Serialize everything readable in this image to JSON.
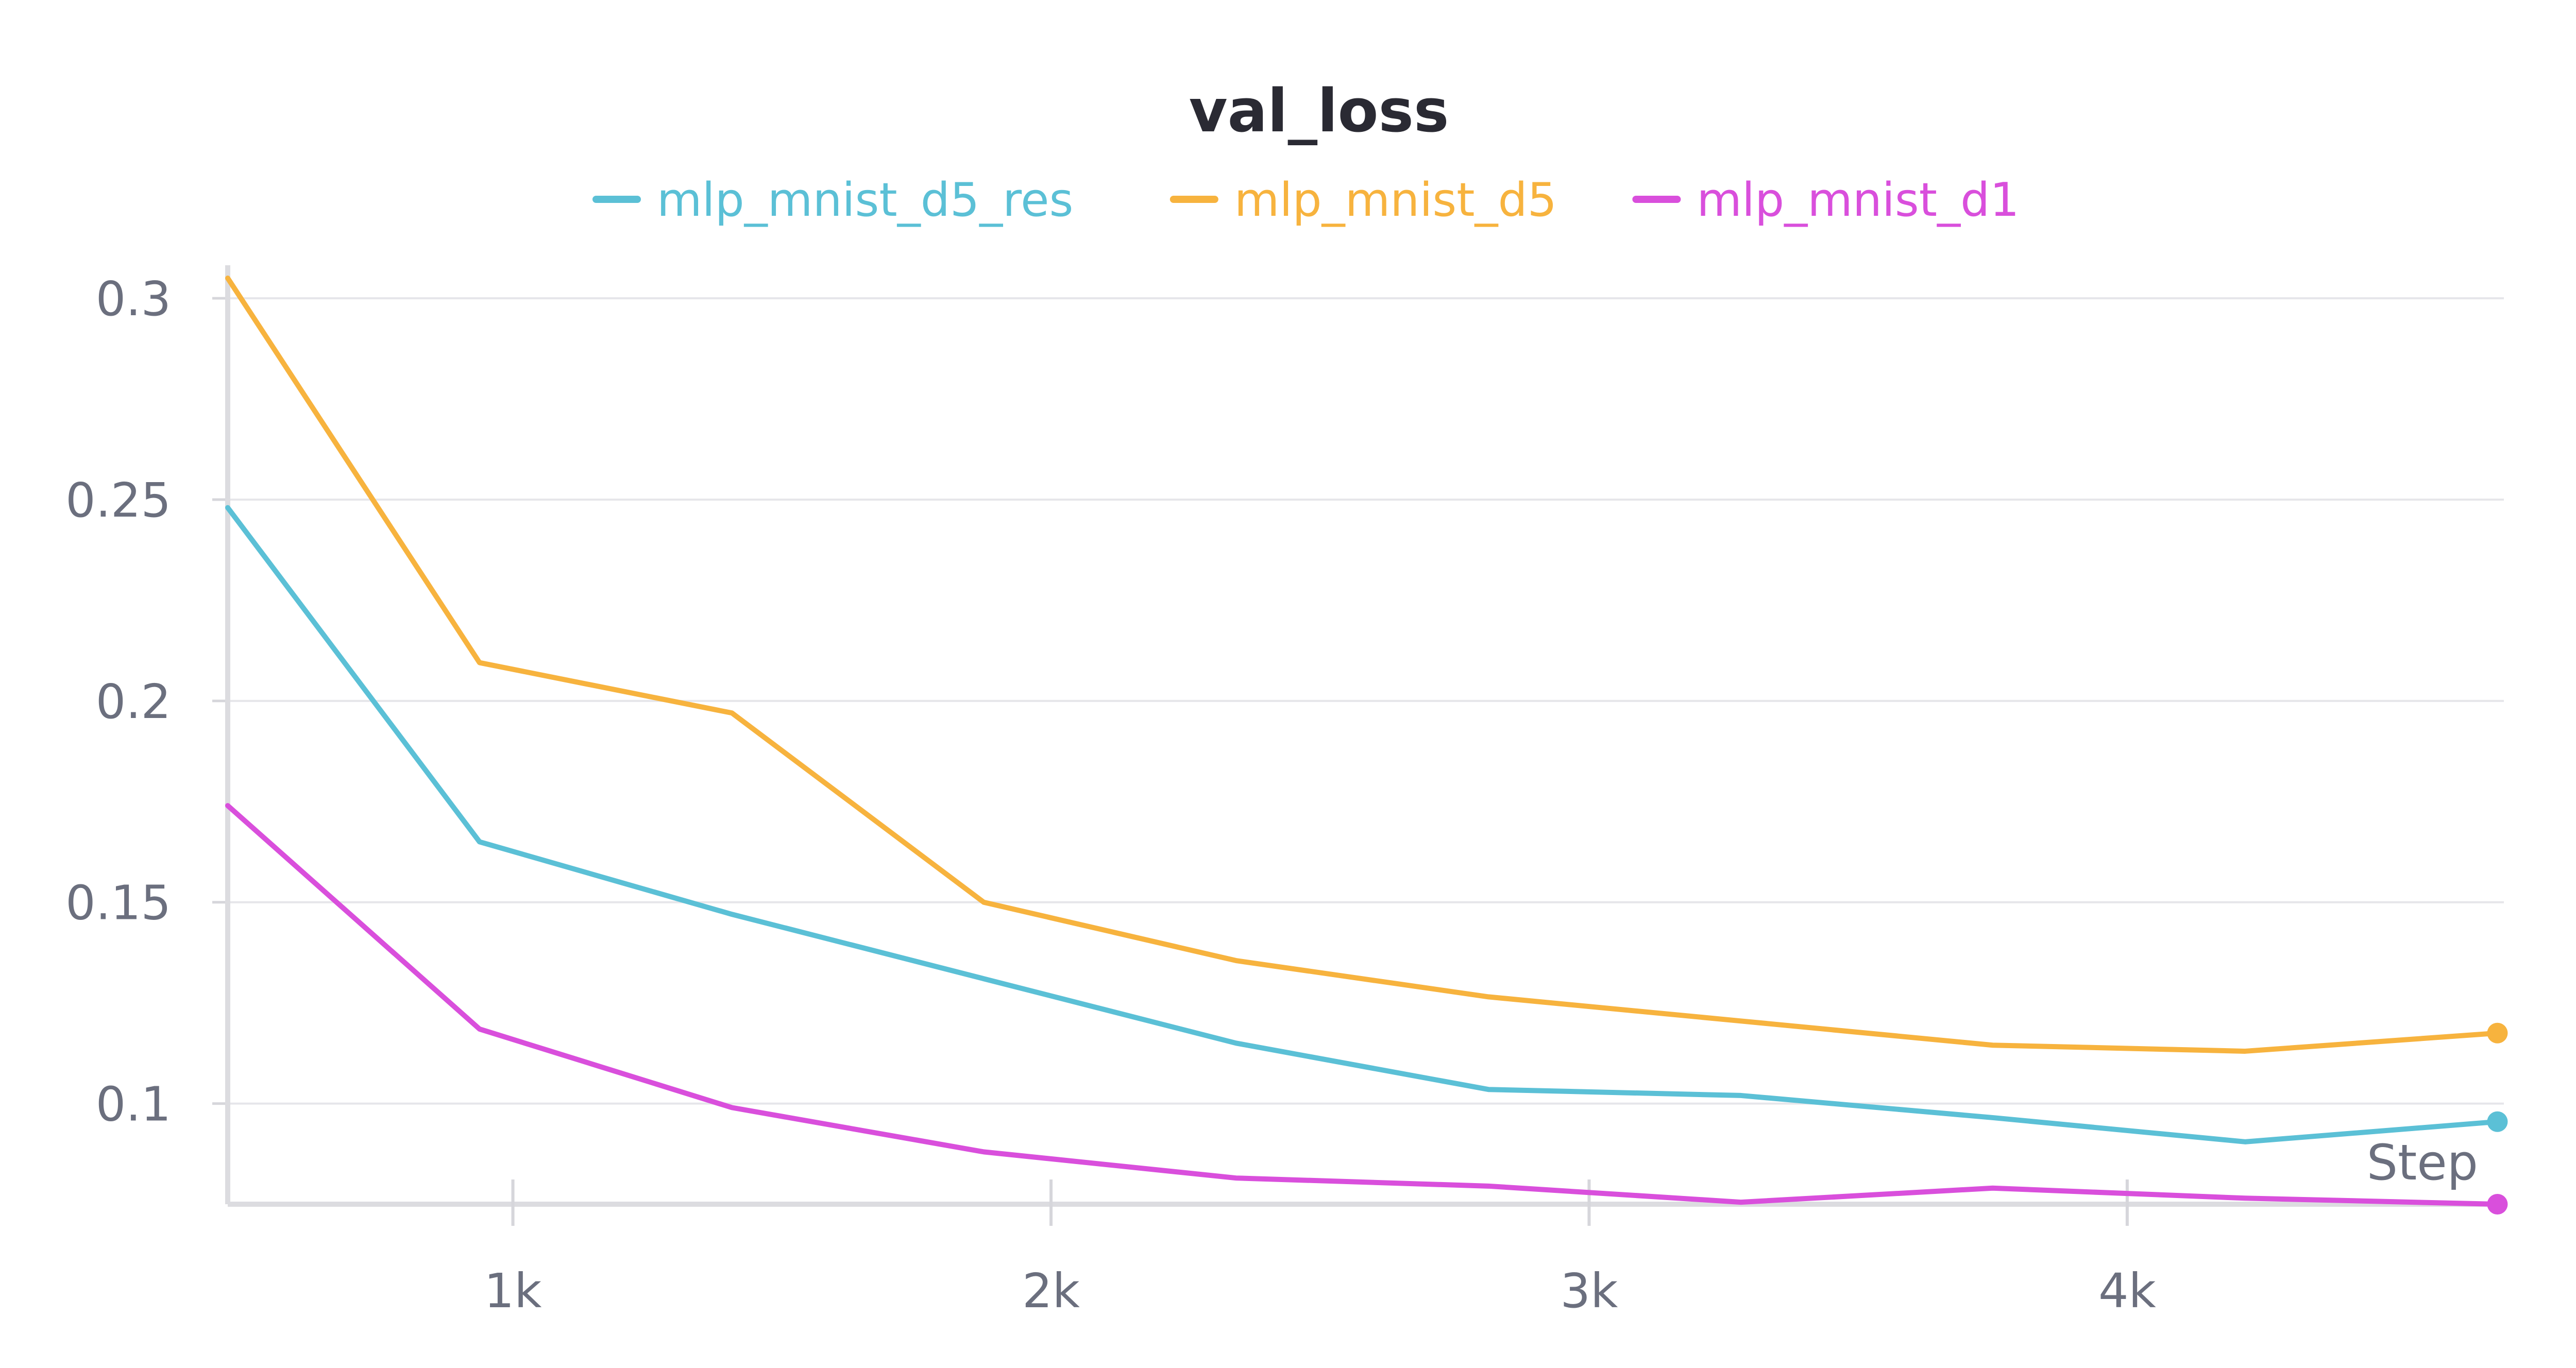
{
  "chart_data": {
    "type": "line",
    "title": "val_loss",
    "xlabel": "Step",
    "ylabel": "",
    "xlim": [
      470,
      4700
    ],
    "ylim": [
      0.075,
      0.305
    ],
    "x_ticks": [
      1000,
      2000,
      3000,
      4000
    ],
    "x_tick_labels": [
      "1k",
      "2k",
      "3k",
      "4k"
    ],
    "y_ticks": [
      0.1,
      0.15,
      0.2,
      0.25,
      0.3
    ],
    "y_tick_labels": [
      "0.1",
      "0.15",
      "0.2",
      "0.25",
      "0.3"
    ],
    "grid": true,
    "legend_position": "top-center",
    "x": [
      470,
      938,
      1407,
      1875,
      2344,
      2813,
      3282,
      3750,
      4219,
      4688
    ],
    "series": [
      {
        "name": "mlp_mnist_d5_res",
        "color": "#5bc0d6",
        "values": [
          0.248,
          0.165,
          0.147,
          0.131,
          0.115,
          0.1035,
          0.102,
          0.0965,
          0.0905,
          0.0955
        ]
      },
      {
        "name": "mlp_mnist_d5",
        "color": "#f7b33e",
        "values": [
          0.305,
          0.2095,
          0.197,
          0.15,
          0.1355,
          0.1265,
          0.1205,
          0.1145,
          0.113,
          0.1175
        ]
      },
      {
        "name": "mlp_mnist_d1",
        "color": "#d94fdc",
        "values": [
          0.174,
          0.1185,
          0.099,
          0.088,
          0.0815,
          0.0795,
          0.0755,
          0.079,
          0.0765,
          0.075
        ]
      }
    ]
  }
}
